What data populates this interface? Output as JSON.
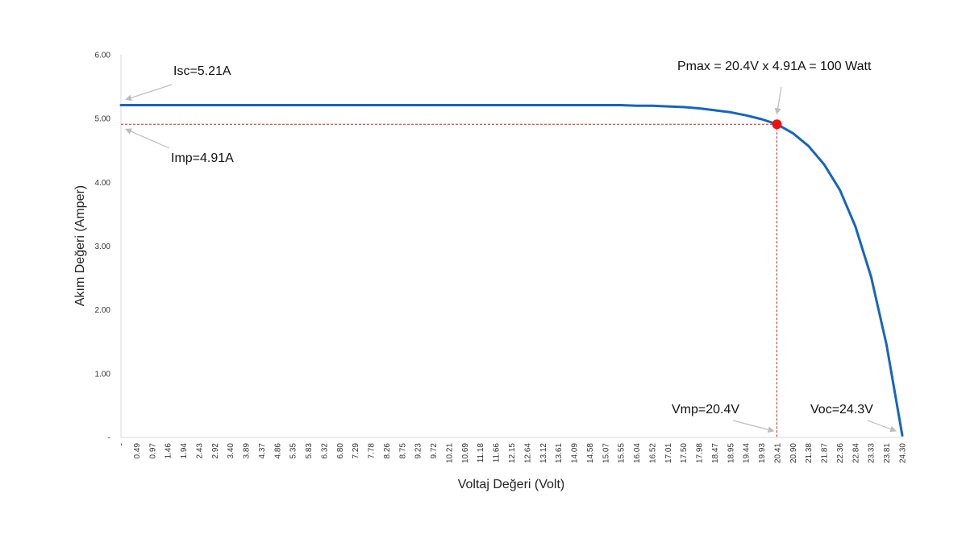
{
  "chart_data": {
    "type": "line",
    "title": "",
    "xlabel": "Voltaj Değeri (Volt)",
    "ylabel": "Akım Değeri (Amper)",
    "xlim": [
      0,
      24.3
    ],
    "ylim": [
      0,
      6
    ],
    "y_ticks": [
      {
        "value": 0,
        "label": "-"
      },
      {
        "value": 1,
        "label": "1.00"
      },
      {
        "value": 2,
        "label": "2.00"
      },
      {
        "value": 3,
        "label": "3.00"
      },
      {
        "value": 4,
        "label": "4.00"
      },
      {
        "value": 5,
        "label": "5.00"
      },
      {
        "value": 6,
        "label": "6.00"
      }
    ],
    "x_tick_labels": [
      "-",
      "0.49",
      "0.97",
      "1.46",
      "1.94",
      "2.43",
      "2.92",
      "3.40",
      "3.89",
      "4.37",
      "4.86",
      "5.35",
      "5.83",
      "6.32",
      "6.80",
      "7.29",
      "7.78",
      "8.26",
      "8.75",
      "9.23",
      "9.72",
      "10.21",
      "10.69",
      "11.18",
      "11.66",
      "12.15",
      "12.64",
      "13.12",
      "13.61",
      "14.09",
      "14.58",
      "15.07",
      "15.55",
      "16.04",
      "16.52",
      "17.01",
      "17.50",
      "17.98",
      "18.47",
      "18.95",
      "19.44",
      "19.93",
      "20.41",
      "20.90",
      "21.38",
      "21.87",
      "22.36",
      "22.84",
      "23.33",
      "23.81",
      "24.30"
    ],
    "series": [
      {
        "color": "#1565c0",
        "x": [
          0,
          0.49,
          0.97,
          1.46,
          1.94,
          2.43,
          2.92,
          3.4,
          3.89,
          4.37,
          4.86,
          5.35,
          5.83,
          6.32,
          6.8,
          7.29,
          7.78,
          8.26,
          8.75,
          9.23,
          9.72,
          10.21,
          10.69,
          11.18,
          11.66,
          12.15,
          12.64,
          13.12,
          13.61,
          14.09,
          14.58,
          15.07,
          15.55,
          16.04,
          16.52,
          17.01,
          17.5,
          17.98,
          18.47,
          18.95,
          19.44,
          19.93,
          20.41,
          20.9,
          21.38,
          21.87,
          22.36,
          22.84,
          23.33,
          23.81,
          24.3
        ],
        "y": [
          5.21,
          5.21,
          5.21,
          5.21,
          5.21,
          5.21,
          5.21,
          5.21,
          5.21,
          5.21,
          5.21,
          5.21,
          5.21,
          5.21,
          5.21,
          5.21,
          5.21,
          5.21,
          5.21,
          5.21,
          5.21,
          5.21,
          5.21,
          5.21,
          5.21,
          5.21,
          5.21,
          5.21,
          5.21,
          5.21,
          5.21,
          5.21,
          5.21,
          5.2,
          5.2,
          5.19,
          5.18,
          5.16,
          5.13,
          5.1,
          5.05,
          4.99,
          4.91,
          4.77,
          4.57,
          4.28,
          3.88,
          3.31,
          2.52,
          1.45,
          0.03
        ]
      }
    ],
    "max_point": {
      "x": 20.4,
      "y": 4.91,
      "color": "#ee1111"
    },
    "reference_line_color": "#c62828",
    "annotations": {
      "isc": "Isc=5.21A",
      "imp": "Imp=4.91A",
      "pmax": "Pmax = 20.4V x 4.91A = 100 Watt",
      "vmp": "Vmp=20.4V",
      "voc": "Voc=24.3V"
    },
    "grid": false,
    "legend": "none"
  }
}
